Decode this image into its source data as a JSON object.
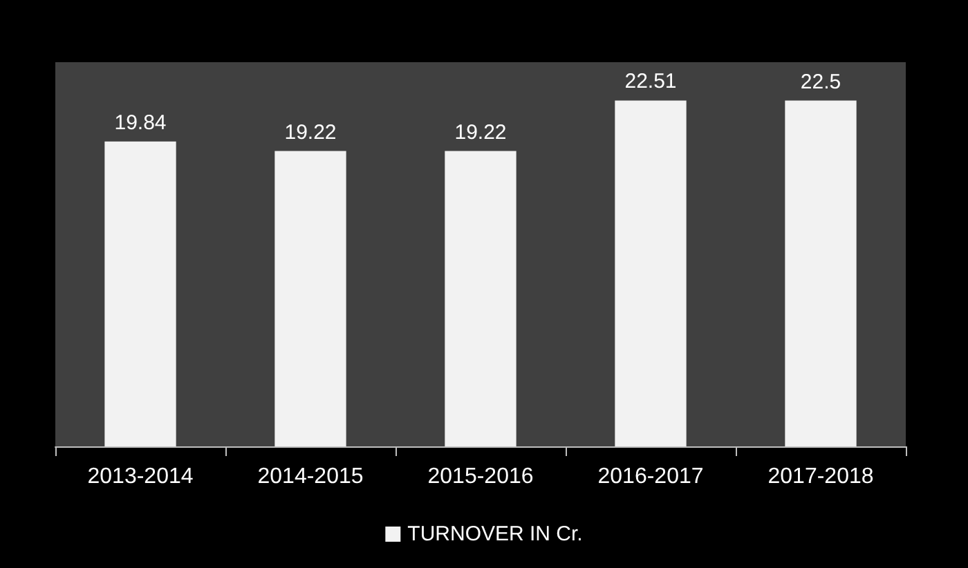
{
  "chart_data": {
    "type": "bar",
    "categories": [
      "2013-2014",
      "2014-2015",
      "2015-2016",
      "2016-2017",
      "2017-2018"
    ],
    "series": [
      {
        "name": "TURNOVER IN Cr.",
        "color": "#f2f2f2",
        "values": [
          19.84,
          19.22,
          19.22,
          22.51,
          22.5
        ]
      }
    ],
    "data_labels": true,
    "legend": "bottom",
    "tick_labels": "x"
  }
}
